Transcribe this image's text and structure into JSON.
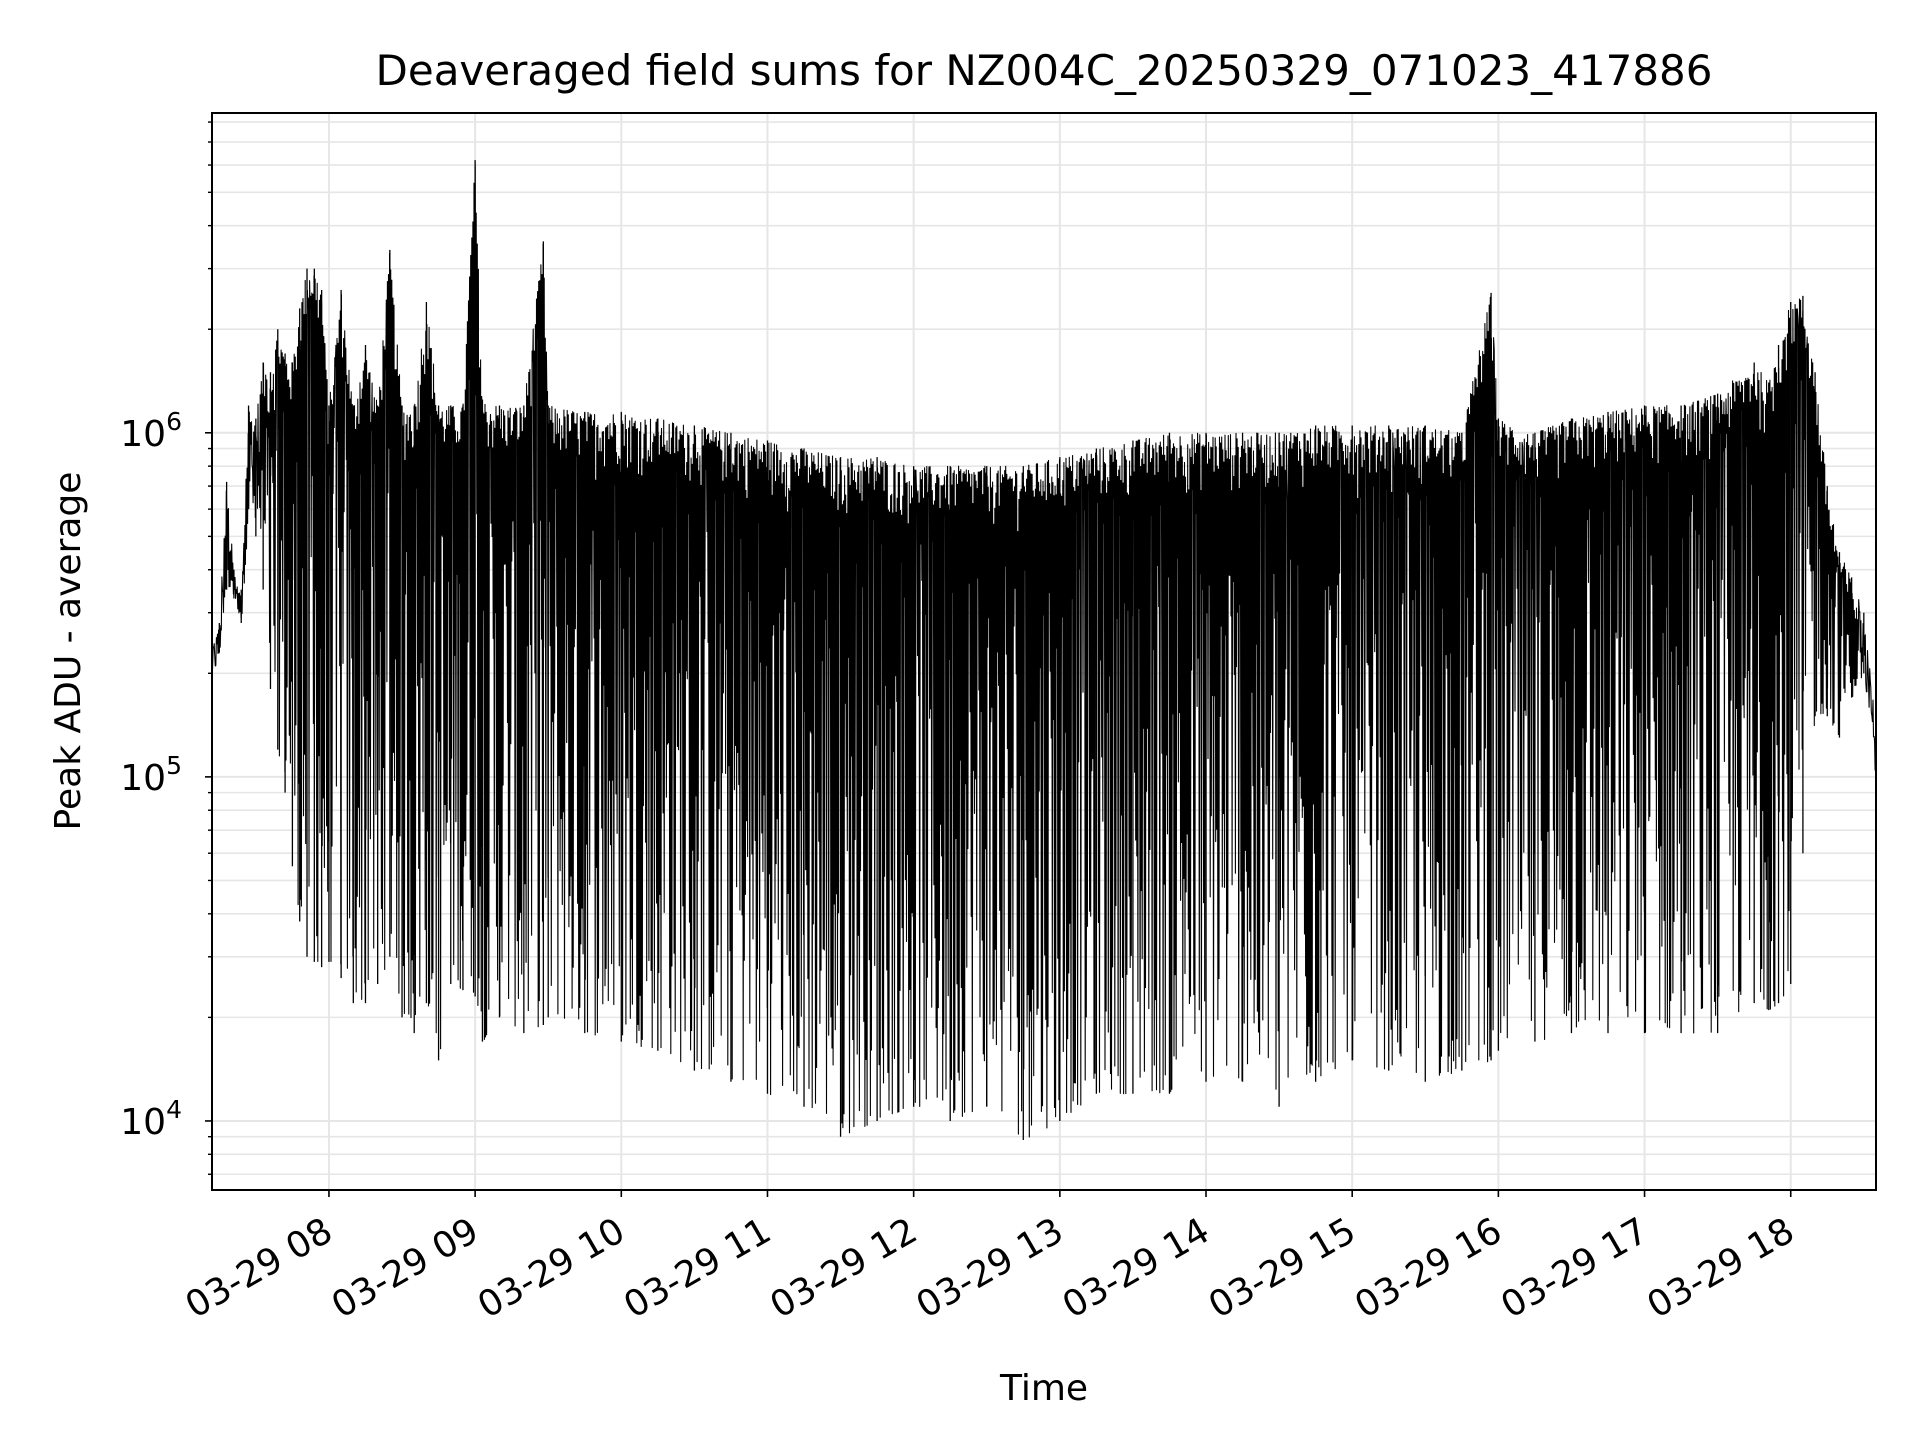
{
  "chart_data": {
    "type": "line",
    "title": "Deaveraged field sums for NZ004C_20250329_071023_417886",
    "xlabel": "Time",
    "ylabel": "Peak ADU - average",
    "yscale": "log",
    "ylim": [
      6300,
      8500000
    ],
    "xlim": [
      "2025-03-29 07:12",
      "2025-03-29 18:35"
    ],
    "x_tick_labels": [
      "03-29 08",
      "03-29 09",
      "03-29 10",
      "03-29 11",
      "03-29 12",
      "03-29 13",
      "03-29 14",
      "03-29 15",
      "03-29 16",
      "03-29 17",
      "03-29 18"
    ],
    "x_ticks": [
      "2025-03-29 08:00",
      "2025-03-29 09:00",
      "2025-03-29 10:00",
      "2025-03-29 11:00",
      "2025-03-29 12:00",
      "2025-03-29 13:00",
      "2025-03-29 14:00",
      "2025-03-29 15:00",
      "2025-03-29 16:00",
      "2025-03-29 17:00",
      "2025-03-29 18:00"
    ],
    "y_ticks": [
      {
        "value": 10000,
        "base": "10",
        "exp": "4"
      },
      {
        "value": 100000,
        "base": "10",
        "exp": "5"
      },
      {
        "value": 1000000,
        "base": "10",
        "exp": "6"
      }
    ],
    "grid": true,
    "line_color": "#000000",
    "series": [
      {
        "x": [
          "2025-03-29 07:12",
          "2025-03-29 07:15",
          "2025-03-29 07:18",
          "2025-03-29 07:21",
          "2025-03-29 07:24",
          "2025-03-29 07:27",
          "2025-03-29 07:30",
          "2025-03-29 07:33",
          "2025-03-29 07:36",
          "2025-03-29 07:39",
          "2025-03-29 07:42",
          "2025-03-29 07:45",
          "2025-03-29 07:48",
          "2025-03-29 07:51",
          "2025-03-29 07:54",
          "2025-03-29 07:57",
          "2025-03-29 08:00",
          "2025-03-29 08:05",
          "2025-03-29 08:10",
          "2025-03-29 08:15",
          "2025-03-29 08:20",
          "2025-03-29 08:25",
          "2025-03-29 08:30",
          "2025-03-29 08:35",
          "2025-03-29 08:40",
          "2025-03-29 08:45",
          "2025-03-29 08:50",
          "2025-03-29 08:55",
          "2025-03-29 09:00",
          "2025-03-29 09:03",
          "2025-03-29 09:10",
          "2025-03-29 09:20",
          "2025-03-29 09:28",
          "2025-03-29 09:30",
          "2025-03-29 09:45",
          "2025-03-29 10:00",
          "2025-03-29 10:15",
          "2025-03-29 10:30",
          "2025-03-29 10:45",
          "2025-03-29 11:00",
          "2025-03-29 11:15",
          "2025-03-29 11:30",
          "2025-03-29 11:45",
          "2025-03-29 12:00",
          "2025-03-29 12:15",
          "2025-03-29 12:30",
          "2025-03-29 12:45",
          "2025-03-29 13:00",
          "2025-03-29 13:15",
          "2025-03-29 13:30",
          "2025-03-29 13:45",
          "2025-03-29 14:00",
          "2025-03-29 14:15",
          "2025-03-29 14:30",
          "2025-03-29 14:45",
          "2025-03-29 15:00",
          "2025-03-29 15:15",
          "2025-03-29 15:30",
          "2025-03-29 15:45",
          "2025-03-29 15:57",
          "2025-03-29 16:00",
          "2025-03-29 16:15",
          "2025-03-29 16:30",
          "2025-03-29 16:45",
          "2025-03-29 17:00",
          "2025-03-29 17:15",
          "2025-03-29 17:30",
          "2025-03-29 17:45",
          "2025-03-29 17:51",
          "2025-03-29 17:55",
          "2025-03-29 18:00",
          "2025-03-29 18:05",
          "2025-03-29 18:10",
          "2025-03-29 18:15",
          "2025-03-29 18:20",
          "2025-03-29 18:25",
          "2025-03-29 18:30",
          "2025-03-29 18:35"
        ],
        "high": [
          250000,
          280000,
          720000,
          400000,
          350000,
          1200000,
          1100000,
          1600000,
          1500000,
          2000000,
          1700000,
          1600000,
          2300000,
          3000000,
          3000000,
          2600000,
          1200000,
          2600000,
          1200000,
          1800000,
          1200000,
          3400000,
          1200000,
          1200000,
          2400000,
          1200000,
          1200000,
          1200000,
          6200000,
          1250000,
          1200000,
          1200000,
          3600000,
          1200000,
          1150000,
          1150000,
          1100000,
          1050000,
          1000000,
          950000,
          900000,
          850000,
          850000,
          800000,
          800000,
          800000,
          800000,
          850000,
          900000,
          950000,
          1000000,
          1000000,
          1000000,
          1000000,
          1050000,
          1050000,
          1050000,
          1050000,
          1000000,
          2550000,
          1100000,
          1000000,
          1100000,
          1150000,
          1200000,
          1200000,
          1300000,
          1600000,
          1400000,
          1800000,
          2400000,
          2500000,
          1500000,
          700000,
          450000,
          380000,
          300000,
          140000
        ],
        "low": [
          200000,
          230000,
          350000,
          330000,
          280000,
          600000,
          500000,
          350000,
          180000,
          120000,
          90000,
          55000,
          38000,
          30000,
          29000,
          28000,
          29000,
          26000,
          22000,
          22000,
          25000,
          30000,
          20000,
          18000,
          22000,
          15000,
          25000,
          24000,
          23000,
          17000,
          20000,
          18000,
          19000,
          20000,
          18000,
          17000,
          16000,
          14000,
          13000,
          12000,
          11000,
          9000,
          10000,
          11000,
          10000,
          11000,
          8800,
          10000,
          12000,
          12000,
          12000,
          13000,
          13000,
          11000,
          13000,
          15000,
          14000,
          13000,
          14000,
          15000,
          16000,
          17000,
          18000,
          18000,
          18000,
          18000,
          18000,
          22000,
          21000,
          22000,
          25000,
          60000,
          150000,
          150000,
          130000,
          170000,
          200000,
          110000
        ]
      }
    ]
  }
}
